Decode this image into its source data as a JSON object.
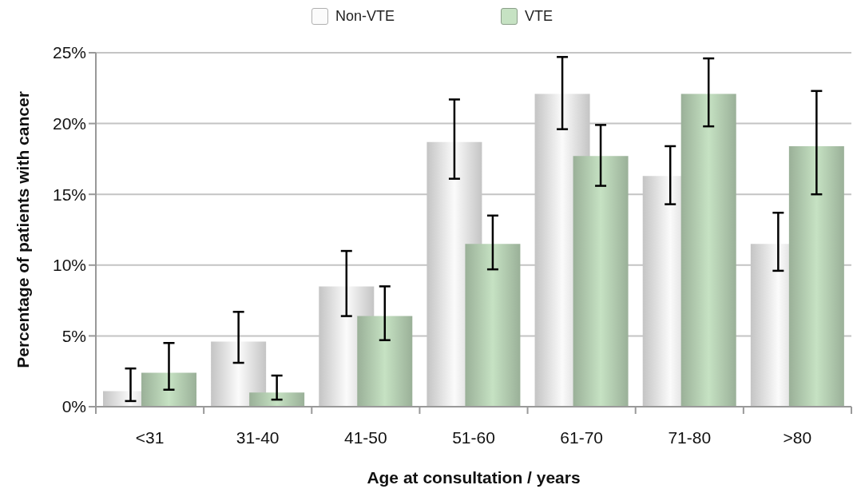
{
  "chart_data": {
    "type": "bar",
    "xlabel": "Age at consultation / years",
    "ylabel": "Percentage of patients with cancer",
    "categories": [
      "<31",
      "31-40",
      "41-50",
      "51-60",
      "61-70",
      "71-80",
      ">80"
    ],
    "series": [
      {
        "name": "Non-VTE",
        "color": "#fbfbfb",
        "values": [
          1.1,
          4.6,
          8.5,
          18.7,
          22.1,
          16.3,
          11.5
        ],
        "errors": [
          [
            0.4,
            2.7
          ],
          [
            3.1,
            6.7
          ],
          [
            6.4,
            11.0
          ],
          [
            16.1,
            21.7
          ],
          [
            19.6,
            24.7
          ],
          [
            14.3,
            18.4
          ],
          [
            9.6,
            13.7
          ]
        ]
      },
      {
        "name": "VTE",
        "color": "#c6e2c3",
        "values": [
          2.4,
          1.0,
          6.4,
          11.5,
          17.7,
          22.1,
          18.4
        ],
        "errors": [
          [
            1.2,
            4.5
          ],
          [
            0.5,
            2.2
          ],
          [
            4.7,
            8.5
          ],
          [
            9.7,
            13.5
          ],
          [
            15.6,
            19.9
          ],
          [
            19.8,
            24.6
          ],
          [
            15.0,
            22.3
          ]
        ]
      }
    ],
    "ylim": [
      0,
      25
    ],
    "yticks": [
      {
        "value": 0,
        "label": "0%"
      },
      {
        "value": 5,
        "label": "5%"
      },
      {
        "value": 10,
        "label": "10%"
      },
      {
        "value": 15,
        "label": "15%"
      },
      {
        "value": 20,
        "label": "20%"
      },
      {
        "value": 25,
        "label": "25%"
      }
    ],
    "grid": "y",
    "legend": "top"
  }
}
